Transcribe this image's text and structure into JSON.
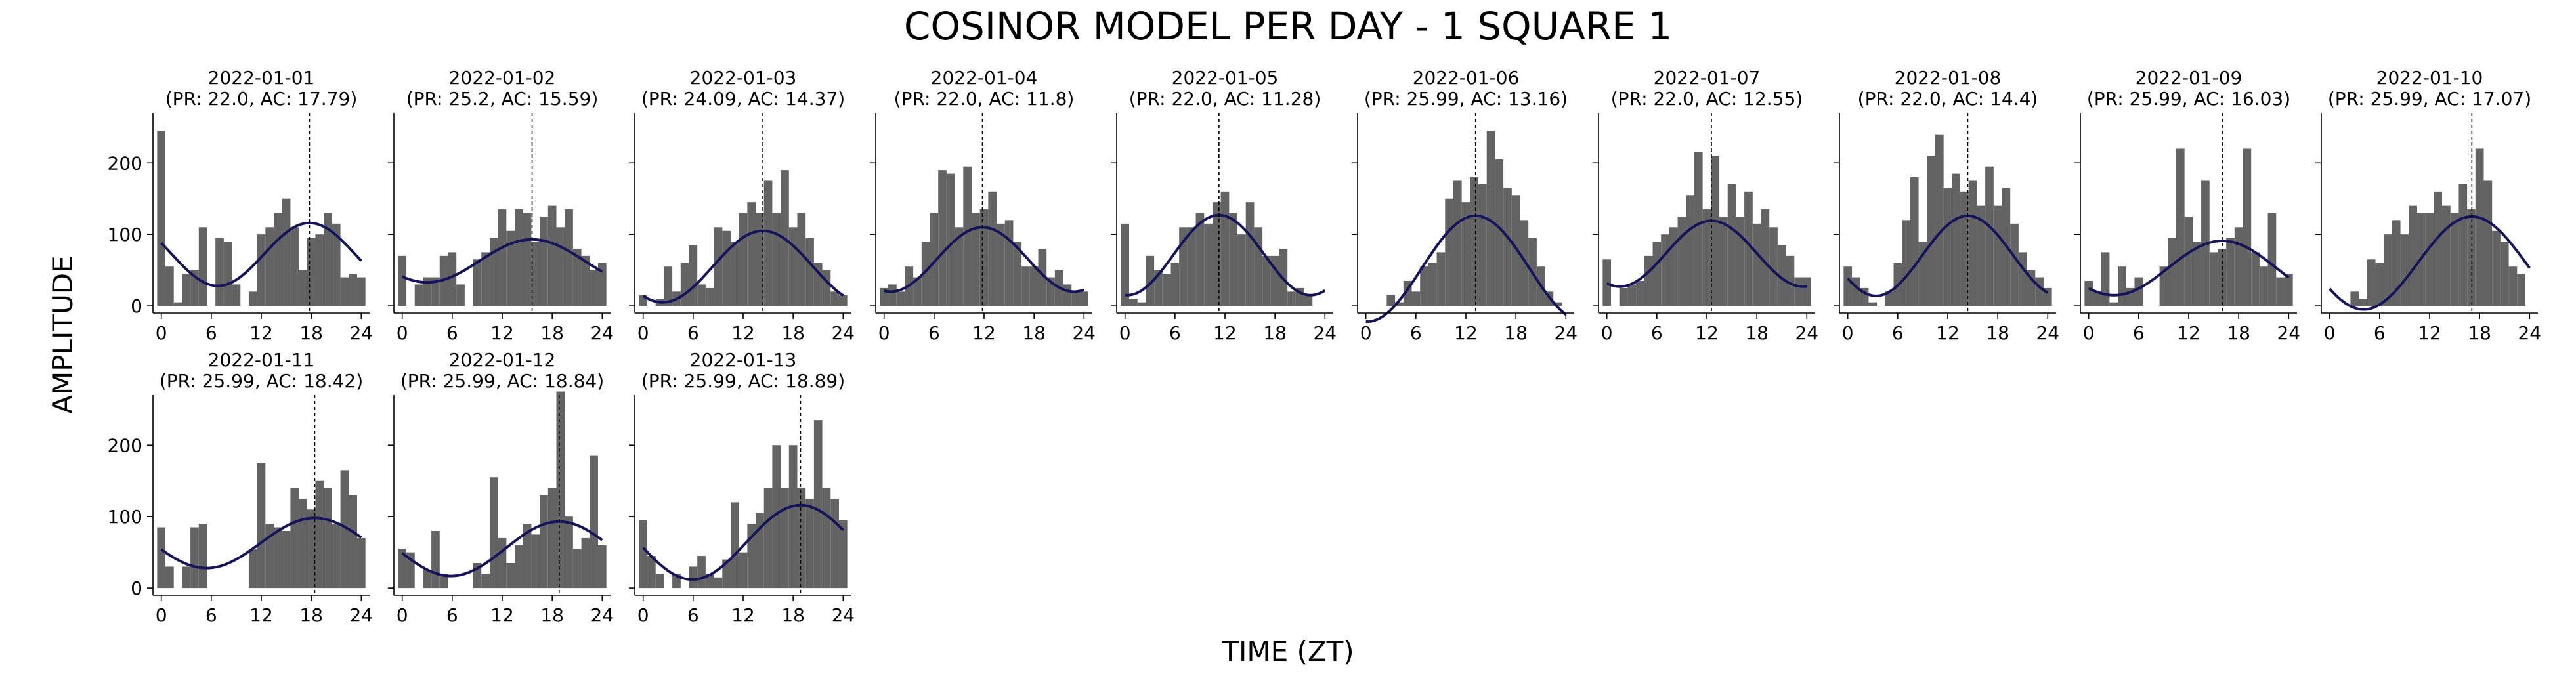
{
  "title": "COSINOR MODEL PER DAY - 1 SQUARE 1",
  "xlabel": "TIME (ZT)",
  "ylabel": "AMPLITUDE",
  "colors": {
    "bar": "#636363",
    "curve": "#14145c",
    "acrophase_line": "#000000"
  },
  "chart_data": {
    "type": "bar",
    "layout": {
      "columns": 10,
      "rows": 2
    },
    "xlim": [
      -1,
      25
    ],
    "ylim": [
      -10,
      270
    ],
    "xticks": [
      0,
      6,
      12,
      18,
      24
    ],
    "yticks": [
      0,
      100,
      200
    ],
    "shared_y": true,
    "panels": [
      {
        "date": "2022-01-01",
        "subtitle": "(PR: 22.0, AC: 17.79)",
        "period": 22.0,
        "acrophase": 17.79,
        "mesor": 72,
        "amplitude": 44,
        "values": [
          245,
          55,
          5,
          45,
          50,
          110,
          0,
          95,
          90,
          30,
          0,
          20,
          100,
          110,
          130,
          150,
          110,
          50,
          95,
          100,
          130,
          115,
          40,
          45,
          40
        ]
      },
      {
        "date": "2022-01-02",
        "subtitle": "(PR: 25.2, AC: 15.59)",
        "period": 25.2,
        "acrophase": 15.59,
        "mesor": 63,
        "amplitude": 30,
        "values": [
          70,
          0,
          30,
          40,
          40,
          70,
          75,
          30,
          0,
          65,
          75,
          95,
          135,
          105,
          135,
          130,
          90,
          125,
          140,
          110,
          135,
          80,
          70,
          50,
          60
        ]
      },
      {
        "date": "2022-01-03",
        "subtitle": "(PR: 24.09, AC: 14.37)",
        "period": 24.09,
        "acrophase": 14.37,
        "mesor": 55,
        "amplitude": 50,
        "values": [
          15,
          0,
          10,
          55,
          20,
          60,
          85,
          30,
          25,
          110,
          105,
          90,
          130,
          145,
          130,
          175,
          130,
          190,
          110,
          130,
          95,
          60,
          50,
          20,
          15
        ]
      },
      {
        "date": "2022-01-04",
        "subtitle": "(PR: 22.0, AC: 11.8)",
        "period": 22.0,
        "acrophase": 11.8,
        "mesor": 65,
        "amplitude": 45,
        "values": [
          25,
          30,
          20,
          55,
          40,
          90,
          130,
          190,
          185,
          110,
          195,
          130,
          135,
          160,
          115,
          120,
          90,
          55,
          55,
          80,
          40,
          50,
          30,
          20,
          20
        ]
      },
      {
        "date": "2022-01-05",
        "subtitle": "(PR: 22.0, AC: 11.28)",
        "period": 22.0,
        "acrophase": 11.28,
        "mesor": 71,
        "amplitude": 56,
        "values": [
          115,
          10,
          5,
          70,
          50,
          45,
          60,
          110,
          110,
          130,
          115,
          145,
          160,
          130,
          100,
          145,
          110,
          70,
          70,
          80,
          20,
          25,
          15,
          0,
          0
        ]
      },
      {
        "date": "2022-01-06",
        "subtitle": "(PR: 25.99, AC: 13.16)",
        "period": 25.99,
        "acrophase": 13.16,
        "mesor": 52,
        "amplitude": 74,
        "values": [
          0,
          0,
          0,
          15,
          5,
          35,
          20,
          55,
          60,
          75,
          150,
          175,
          145,
          180,
          170,
          245,
          205,
          165,
          155,
          120,
          95,
          55,
          20,
          5,
          0
        ]
      },
      {
        "date": "2022-01-07",
        "subtitle": "(PR: 22.0, AC: 12.55)",
        "period": 22.0,
        "acrophase": 12.55,
        "mesor": 73,
        "amplitude": 46,
        "values": [
          65,
          0,
          25,
          30,
          35,
          70,
          90,
          100,
          110,
          125,
          155,
          215,
          135,
          210,
          125,
          170,
          125,
          160,
          115,
          135,
          110,
          85,
          70,
          40,
          40
        ]
      },
      {
        "date": "2022-01-08",
        "subtitle": "(PR: 22.0, AC: 14.4)",
        "period": 22.0,
        "acrophase": 14.4,
        "mesor": 70,
        "amplitude": 56,
        "values": [
          55,
          40,
          25,
          5,
          0,
          20,
          60,
          120,
          180,
          90,
          210,
          240,
          165,
          185,
          160,
          175,
          140,
          195,
          140,
          165,
          115,
          75,
          50,
          40,
          25
        ]
      },
      {
        "date": "2022-01-09",
        "subtitle": "(PR: 25.99, AC: 16.03)",
        "period": 25.99,
        "acrophase": 16.03,
        "mesor": 53,
        "amplitude": 38,
        "values": [
          35,
          20,
          75,
          5,
          55,
          25,
          40,
          0,
          0,
          55,
          95,
          220,
          125,
          90,
          175,
          75,
          80,
          95,
          110,
          220,
          75,
          55,
          130,
          40,
          45
        ]
      },
      {
        "date": "2022-01-10",
        "subtitle": "(PR: 25.99, AC: 17.07)",
        "period": 25.99,
        "acrophase": 17.07,
        "mesor": 60,
        "amplitude": 65,
        "values": [
          0,
          0,
          0,
          20,
          10,
          65,
          60,
          100,
          120,
          100,
          140,
          130,
          130,
          160,
          140,
          130,
          170,
          135,
          220,
          175,
          105,
          90,
          55,
          45,
          0
        ]
      },
      {
        "date": "2022-01-11",
        "subtitle": "(PR: 25.99, AC: 18.42)",
        "period": 25.99,
        "acrophase": 18.42,
        "mesor": 63,
        "amplitude": 35,
        "values": [
          85,
          30,
          0,
          30,
          85,
          90,
          0,
          0,
          0,
          0,
          0,
          55,
          175,
          90,
          85,
          80,
          140,
          125,
          110,
          150,
          140,
          90,
          165,
          130,
          70
        ]
      },
      {
        "date": "2022-01-12",
        "subtitle": "(PR: 25.99, AC: 18.84)",
        "period": 25.99,
        "acrophase": 18.84,
        "mesor": 55,
        "amplitude": 38,
        "values": [
          55,
          50,
          0,
          25,
          80,
          20,
          0,
          0,
          0,
          35,
          20,
          155,
          70,
          35,
          60,
          90,
          75,
          130,
          140,
          275,
          100,
          55,
          70,
          185,
          60
        ]
      },
      {
        "date": "2022-01-13",
        "subtitle": "(PR: 25.99, AC: 18.89)",
        "period": 25.99,
        "acrophase": 18.89,
        "mesor": 64,
        "amplitude": 52,
        "values": [
          95,
          45,
          20,
          0,
          20,
          0,
          30,
          45,
          20,
          15,
          40,
          120,
          50,
          90,
          105,
          140,
          200,
          140,
          200,
          140,
          125,
          235,
          140,
          125,
          95
        ]
      }
    ]
  }
}
